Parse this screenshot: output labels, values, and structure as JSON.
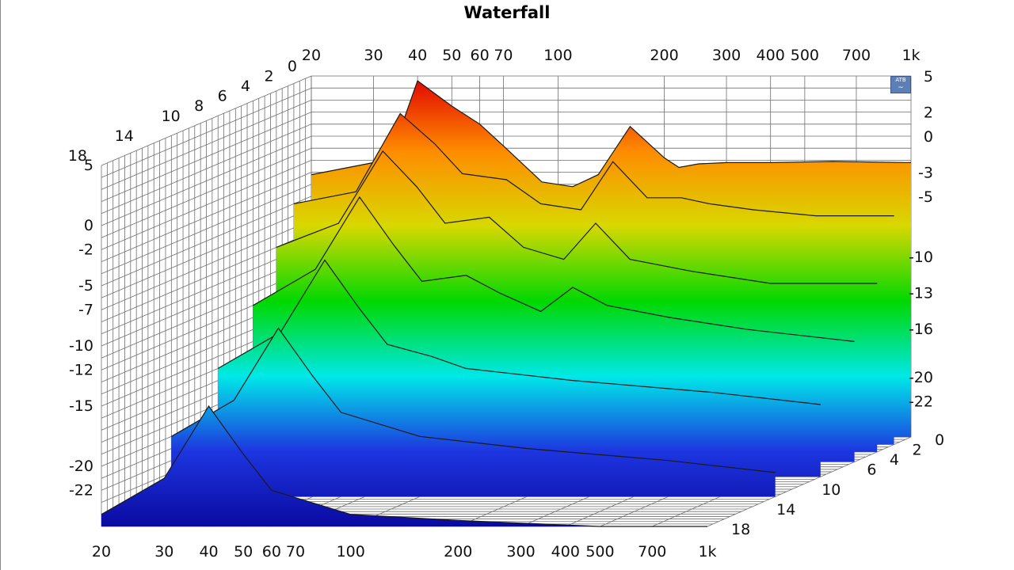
{
  "chart_data": {
    "type": "waterfall",
    "title": "Waterfall",
    "x_ticks": [
      "20",
      "30",
      "40",
      "50",
      "60",
      "70",
      "100",
      "200",
      "300",
      "400",
      "500",
      "700",
      "1k"
    ],
    "x_tick_values": [
      20,
      30,
      40,
      50,
      60,
      70,
      100,
      200,
      300,
      400,
      500,
      700,
      1000
    ],
    "x_scale": "log",
    "xlim": [
      20,
      1000
    ],
    "z_ticks_left": [
      "0",
      "2",
      "4",
      "6",
      "8",
      "10",
      "14",
      "18"
    ],
    "z_ticks_right": [
      "0",
      "2",
      "4",
      "6",
      "10",
      "14",
      "18"
    ],
    "z_tick_values_left": [
      0,
      2,
      4,
      6,
      8,
      10,
      14,
      18
    ],
    "z_tick_values_right": [
      0,
      2,
      4,
      6,
      10,
      14,
      18
    ],
    "zlim": [
      0,
      18
    ],
    "y_ticks_left": [
      "5",
      "0",
      "-2",
      "-5",
      "-7",
      "-10",
      "-12",
      "-15",
      "-20",
      "-22"
    ],
    "y_tick_values_left": [
      5,
      0,
      -2,
      -5,
      -7,
      -10,
      -12,
      -15,
      -20,
      -22
    ],
    "y_ticks_right": [
      "5",
      "2",
      "0",
      "-3",
      "-5",
      "-10",
      "-13",
      "-16",
      "-20",
      "-22"
    ],
    "y_tick_values_right": [
      5,
      2,
      0,
      -3,
      -5,
      -10,
      -13,
      -16,
      -20,
      -22
    ],
    "ylim": [
      -25,
      5
    ],
    "grid": true,
    "colormap": [
      "#0a0aa0",
      "#1d35e0",
      "#00e8e8",
      "#00d800",
      "#d8d800",
      "#ff8c00",
      "#e00000"
    ],
    "slices": [
      {
        "z": 0,
        "x": [
          20,
          30,
          35,
          40,
          50,
          60,
          70,
          90,
          110,
          130,
          160,
          200,
          220,
          250,
          300,
          400,
          600,
          1000
        ],
        "y": [
          -3.2,
          -2.2,
          -0.2,
          4.6,
          2.5,
          1.0,
          -0.8,
          -3.8,
          -4.2,
          -3.2,
          0.8,
          -1.8,
          -2.6,
          -2.3,
          -2.2,
          -2.2,
          -2.1,
          -2.2
        ]
      },
      {
        "z": 1.5,
        "x": [
          20,
          30,
          40,
          50,
          60,
          80,
          100,
          130,
          160,
          200,
          250,
          300,
          400,
          600,
          1000
        ],
        "y": [
          -5,
          -4,
          2.5,
          0,
          -2.5,
          -3,
          -5,
          -5.5,
          -1.5,
          -4.5,
          -4.5,
          -5,
          -5.5,
          -6,
          -6
        ]
      },
      {
        "z": 3,
        "x": [
          20,
          30,
          40,
          50,
          60,
          80,
          100,
          130,
          160,
          200,
          300,
          500,
          1000
        ],
        "y": [
          -8,
          -6,
          0,
          -3,
          -6,
          -5.5,
          -8,
          -9,
          -6,
          -9,
          -10,
          -11,
          -11
        ]
      },
      {
        "z": 5,
        "x": [
          20,
          30,
          40,
          50,
          60,
          80,
          100,
          130,
          160,
          200,
          300,
          500,
          1000
        ],
        "y": [
          -12,
          -9,
          -3,
          -7,
          -10,
          -9.5,
          -11,
          -12.5,
          -10.5,
          -12,
          -13,
          -14,
          -15
        ]
      },
      {
        "z": 8,
        "x": [
          20,
          30,
          40,
          50,
          60,
          80,
          100,
          200,
          500,
          1000
        ],
        "y": [
          -16,
          -13,
          -7,
          -11,
          -14,
          -15,
          -16,
          -17,
          -18,
          -19
        ]
      },
      {
        "z": 12,
        "x": [
          20,
          30,
          40,
          50,
          60,
          100,
          200,
          500,
          1000
        ],
        "y": [
          -20,
          -17,
          -11,
          -15,
          -18,
          -20,
          -21,
          -22,
          -23
        ]
      },
      {
        "z": 18,
        "x": [
          20,
          30,
          40,
          50,
          60,
          100,
          200,
          500,
          1000
        ],
        "y": [
          -24,
          -21,
          -15,
          -19,
          -22,
          -24,
          -24.5,
          -25,
          -25
        ]
      }
    ]
  },
  "logo": {
    "text": "ATB",
    "wave": "~"
  }
}
